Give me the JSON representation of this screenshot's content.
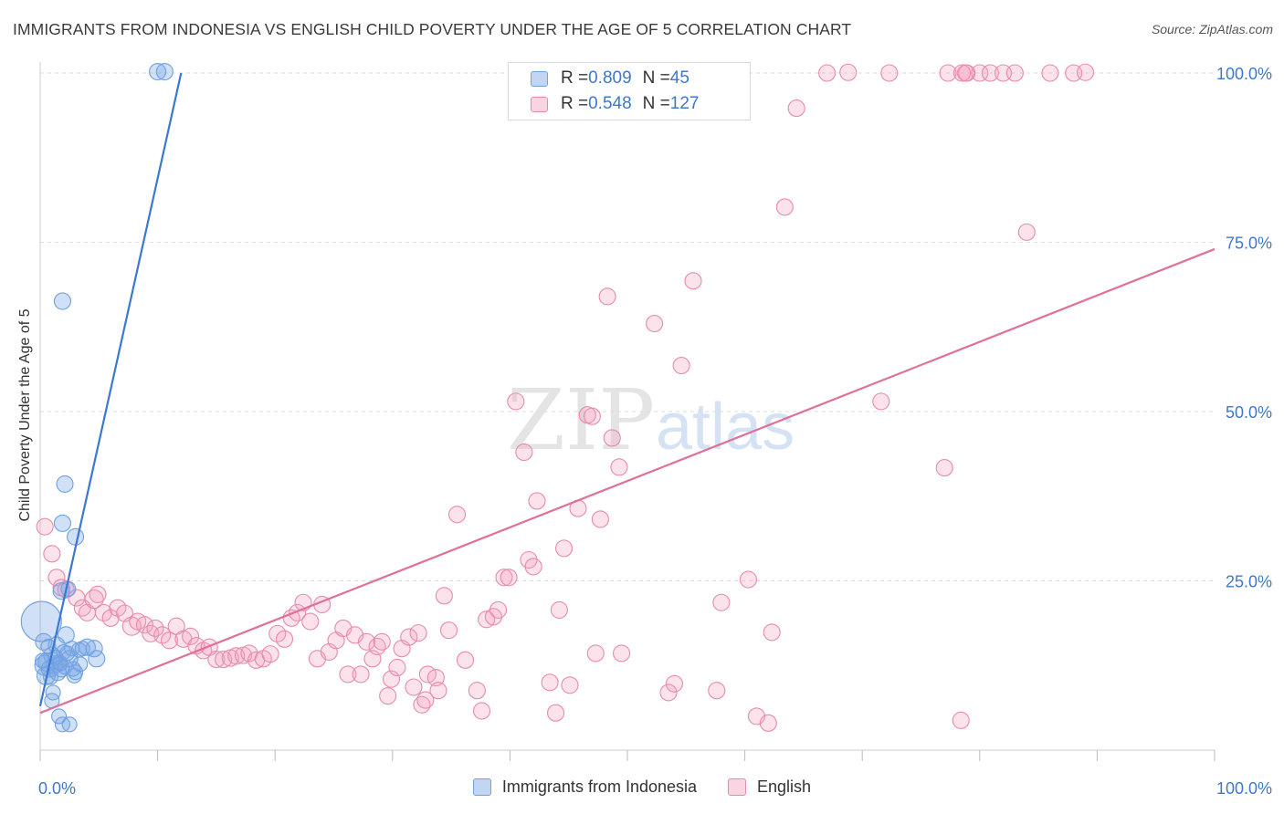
{
  "colors": {
    "blue": "#6fa0e0",
    "blue_fill": "rgba(120,165,230,0.35)",
    "blue_line": "#3b78cf",
    "pink": "#e88aaa",
    "pink_fill": "rgba(245,160,190,0.30)",
    "pink_line": "#e07099",
    "tick_label": "#3f78c9",
    "grid": "#dddddd"
  },
  "header": {
    "title": "IMMIGRANTS FROM INDONESIA VS ENGLISH CHILD POVERTY UNDER THE AGE OF 5 CORRELATION CHART",
    "source": "Source: ZipAtlas.com"
  },
  "watermark": {
    "zip": "ZIP",
    "atlas": "atlas"
  },
  "legend": {
    "rows": [
      {
        "r_label": "R = ",
        "r_value": "0.809",
        "n_label": "N = ",
        "n_value": "45"
      },
      {
        "r_label": "R = ",
        "r_value": "0.548",
        "n_label": "N = ",
        "n_value": "127"
      }
    ]
  },
  "chart_data": {
    "type": "scatter",
    "title": "IMMIGRANTS FROM INDONESIA VS ENGLISH CHILD POVERTY UNDER THE AGE OF 5 CORRELATION CHART",
    "xlabel": "",
    "ylabel": "Child Poverty Under the Age of 5",
    "xlim": [
      0,
      100
    ],
    "ylim": [
      0,
      100
    ],
    "x_tick_labels": [
      {
        "value": 0,
        "label": "0.0%"
      },
      {
        "value": 100,
        "label": "100.0%"
      }
    ],
    "y_tick_labels": [
      {
        "value": 25,
        "label": "25.0%"
      },
      {
        "value": 50,
        "label": "50.0%"
      },
      {
        "value": 75,
        "label": "75.0%"
      },
      {
        "value": 100,
        "label": "100.0%"
      }
    ],
    "x_minor_ticks": [
      0,
      10,
      20,
      30,
      40,
      50,
      60,
      70,
      80,
      90,
      100
    ],
    "series": [
      {
        "name": "Immigrants from Indonesia",
        "r": 0.809,
        "n": 45,
        "trendline": [
          [
            0,
            6.5
          ],
          [
            12,
            100
          ]
        ],
        "points": [
          [
            0.1,
            19,
            22
          ],
          [
            0.4,
            12.5,
            11
          ],
          [
            0.3,
            16,
            9
          ],
          [
            0.5,
            11,
            10
          ],
          [
            0.6,
            13,
            10
          ],
          [
            0.8,
            12,
            9
          ],
          [
            1.0,
            14,
            9
          ],
          [
            1.2,
            12.5,
            9
          ],
          [
            0.9,
            10.8,
            8
          ],
          [
            1.4,
            15.5,
            9
          ],
          [
            1.6,
            13,
            8
          ],
          [
            1.8,
            12,
            9
          ],
          [
            2.0,
            14.5,
            8
          ],
          [
            1.5,
            11.5,
            9
          ],
          [
            2.2,
            17,
            9
          ],
          [
            2.5,
            13.5,
            9
          ],
          [
            2.1,
            12.3,
            8
          ],
          [
            2.7,
            15,
            8
          ],
          [
            1.3,
            13.7,
            8
          ],
          [
            2.9,
            11,
            8
          ],
          [
            3.3,
            14.8,
            8
          ],
          [
            3.6,
            15,
            8
          ],
          [
            4.0,
            15.2,
            9
          ],
          [
            4.6,
            15,
            9
          ],
          [
            4.8,
            13.5,
            9
          ],
          [
            3.0,
            11.5,
            8
          ],
          [
            2.8,
            12,
            8
          ],
          [
            1.7,
            12.8,
            8
          ],
          [
            1.1,
            8.5,
            8
          ],
          [
            1.0,
            7.3,
            8
          ],
          [
            1.6,
            5,
            8
          ],
          [
            1.9,
            3.8,
            8
          ],
          [
            2.5,
            3.8,
            8
          ],
          [
            1.9,
            66.3,
            9
          ],
          [
            2.1,
            39.3,
            9
          ],
          [
            1.9,
            33.5,
            9
          ],
          [
            3.0,
            31.5,
            9
          ],
          [
            1.8,
            23.5,
            9
          ],
          [
            2.4,
            23.8,
            8
          ],
          [
            10.0,
            100.2,
            9
          ],
          [
            10.6,
            100.2,
            9
          ],
          [
            0.7,
            15.3,
            8
          ],
          [
            3.4,
            12.7,
            8
          ],
          [
            2.3,
            14.3,
            8
          ],
          [
            0.2,
            13.2,
            8
          ]
        ]
      },
      {
        "name": "English",
        "r": 0.548,
        "n": 127,
        "trendline": [
          [
            0,
            5.5
          ],
          [
            100,
            74
          ]
        ],
        "points": [
          [
            0.4,
            33,
            9
          ],
          [
            1.0,
            29,
            9
          ],
          [
            1.4,
            25.5,
            9
          ],
          [
            1.8,
            24,
            9
          ],
          [
            2.2,
            23.7,
            9
          ],
          [
            3.1,
            22.5,
            9
          ],
          [
            3.6,
            21,
            9
          ],
          [
            4.0,
            20.3,
            9
          ],
          [
            4.6,
            22.3,
            10
          ],
          [
            4.9,
            23,
            9
          ],
          [
            5.4,
            20.3,
            9
          ],
          [
            6.0,
            19.5,
            9
          ],
          [
            6.6,
            21,
            9
          ],
          [
            7.2,
            20.2,
            9
          ],
          [
            7.8,
            18.3,
            10
          ],
          [
            8.3,
            19,
            9
          ],
          [
            8.9,
            18.5,
            9
          ],
          [
            9.4,
            17.2,
            9
          ],
          [
            9.8,
            18,
            9
          ],
          [
            10.4,
            17,
            9
          ],
          [
            11.0,
            16.2,
            9
          ],
          [
            11.6,
            18.3,
            9
          ],
          [
            12.2,
            16.4,
            9
          ],
          [
            12.8,
            16.8,
            9
          ],
          [
            13.3,
            15.4,
            9
          ],
          [
            13.9,
            14.7,
            9
          ],
          [
            14.4,
            15.2,
            9
          ],
          [
            15.0,
            13.4,
            9
          ],
          [
            15.6,
            13.4,
            9
          ],
          [
            16.2,
            13.6,
            9
          ],
          [
            16.7,
            13.9,
            9
          ],
          [
            17.3,
            14,
            9
          ],
          [
            17.8,
            14.3,
            9
          ],
          [
            18.4,
            13.3,
            9
          ],
          [
            19.0,
            13.5,
            9
          ],
          [
            19.6,
            14.2,
            9
          ],
          [
            20.2,
            17.2,
            9
          ],
          [
            20.8,
            16.4,
            9
          ],
          [
            21.4,
            19.5,
            9
          ],
          [
            21.9,
            20.3,
            9
          ],
          [
            22.4,
            21.8,
            9
          ],
          [
            23.0,
            19,
            9
          ],
          [
            23.6,
            13.5,
            9
          ],
          [
            24.0,
            21.5,
            9
          ],
          [
            24.6,
            14.5,
            9
          ],
          [
            25.2,
            16.2,
            9
          ],
          [
            25.8,
            18,
            9
          ],
          [
            26.2,
            11.2,
            9
          ],
          [
            26.8,
            17,
            9
          ],
          [
            27.3,
            11.2,
            9
          ],
          [
            27.8,
            16,
            9
          ],
          [
            28.3,
            13.5,
            9
          ],
          [
            28.7,
            15.3,
            9
          ],
          [
            29.1,
            16,
            9
          ],
          [
            29.6,
            8,
            9
          ],
          [
            29.9,
            10.5,
            9
          ],
          [
            30.4,
            12.2,
            9
          ],
          [
            30.8,
            15,
            9
          ],
          [
            31.4,
            16.7,
            9
          ],
          [
            31.8,
            9.3,
            9
          ],
          [
            32.2,
            17.3,
            9
          ],
          [
            32.5,
            6.7,
            9
          ],
          [
            32.8,
            7.4,
            9
          ],
          [
            33.0,
            11.2,
            9
          ],
          [
            33.7,
            10.7,
            9
          ],
          [
            33.9,
            8.8,
            9
          ],
          [
            34.4,
            22.8,
            9
          ],
          [
            34.8,
            17.7,
            9
          ],
          [
            35.5,
            34.8,
            9
          ],
          [
            36.2,
            13.3,
            9
          ],
          [
            37.2,
            8.8,
            9
          ],
          [
            37.6,
            5.8,
            9
          ],
          [
            38.0,
            19.3,
            9
          ],
          [
            38.6,
            19.7,
            9
          ],
          [
            39.0,
            20.7,
            9
          ],
          [
            39.5,
            25.5,
            9
          ],
          [
            39.9,
            25.5,
            9
          ],
          [
            40.5,
            51.5,
            9
          ],
          [
            41.2,
            44,
            9
          ],
          [
            41.6,
            28.1,
            9
          ],
          [
            42.0,
            27.1,
            9
          ],
          [
            42.3,
            36.8,
            9
          ],
          [
            43.4,
            10,
            9
          ],
          [
            43.9,
            5.5,
            9
          ],
          [
            44.2,
            20.7,
            9
          ],
          [
            44.6,
            29.8,
            9
          ],
          [
            45.1,
            9.6,
            9
          ],
          [
            45.8,
            35.7,
            9
          ],
          [
            46.6,
            49.5,
            9
          ],
          [
            47.0,
            49.3,
            9
          ],
          [
            47.3,
            14.3,
            9
          ],
          [
            47.7,
            34.1,
            9
          ],
          [
            48.3,
            67,
            9
          ],
          [
            48.7,
            46.1,
            9
          ],
          [
            49.3,
            41.8,
            9
          ],
          [
            49.5,
            14.3,
            9
          ],
          [
            53.5,
            8.5,
            9
          ],
          [
            54.0,
            9.8,
            9
          ],
          [
            54.6,
            56.8,
            9
          ],
          [
            57.6,
            8.8,
            9
          ],
          [
            58.0,
            21.8,
            9
          ],
          [
            60.3,
            25.2,
            9
          ],
          [
            61.0,
            5,
            9
          ],
          [
            62.0,
            4,
            9
          ],
          [
            62.3,
            17.4,
            9
          ],
          [
            63.4,
            80.2,
            9
          ],
          [
            64.4,
            94.8,
            9
          ],
          [
            67.0,
            100,
            9
          ],
          [
            68.8,
            100.1,
            9
          ],
          [
            71.6,
            51.5,
            9
          ],
          [
            72.3,
            100,
            9
          ],
          [
            77.0,
            41.7,
            9
          ],
          [
            77.3,
            100,
            9
          ],
          [
            78.8,
            100,
            9
          ],
          [
            80.0,
            100,
            9
          ],
          [
            78.4,
            4.4,
            9
          ],
          [
            78.9,
            100,
            9
          ],
          [
            78.5,
            100,
            9
          ],
          [
            80.9,
            100,
            9
          ],
          [
            82.0,
            100,
            9
          ],
          [
            83.0,
            100,
            9
          ],
          [
            84.0,
            76.5,
            9
          ],
          [
            86.0,
            100,
            9
          ],
          [
            88.0,
            100,
            9
          ],
          [
            89.0,
            100.1,
            9
          ],
          [
            52.3,
            63,
            9
          ],
          [
            55.6,
            69.3,
            9
          ]
        ]
      }
    ]
  },
  "bottom_legend": [
    {
      "label": "Immigrants from Indonesia"
    },
    {
      "label": "English"
    }
  ]
}
